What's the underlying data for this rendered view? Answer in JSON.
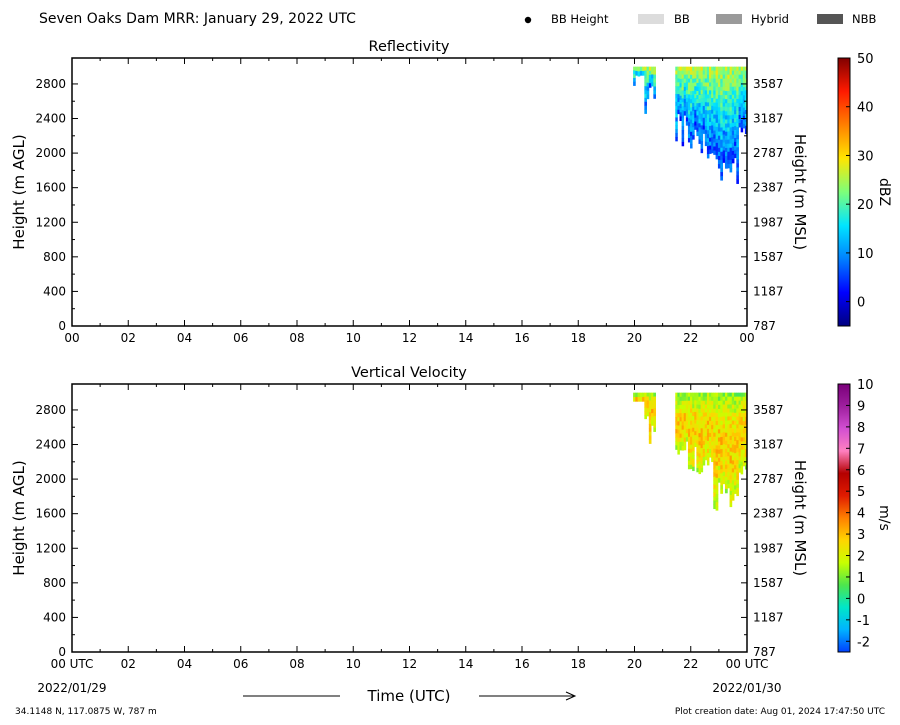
{
  "header": {
    "title": "Seven Oaks Dam MRR:  January 29, 2022 UTC",
    "legend": [
      {
        "label": "BB Height",
        "kind": "dot",
        "color": "#000000"
      },
      {
        "label": "BB",
        "kind": "patch",
        "color": "#dcdcdc"
      },
      {
        "label": "Hybrid",
        "kind": "patch",
        "color": "#9a9a9a"
      },
      {
        "label": "NBB",
        "kind": "patch",
        "color": "#555555"
      }
    ]
  },
  "footer": {
    "location": "34.1148 N, 117.0875 W, 787 m",
    "creation": "Plot creation date: Aug 01, 2024 17:47:50 UTC",
    "date_start": "2022/01/29",
    "date_end": "2022/01/30",
    "time_label": "Time (UTC)"
  },
  "chart_data": [
    {
      "type": "heatmap",
      "title": "Reflectivity",
      "ylabel": "Height (m AGL)",
      "y2label": "Height (m MSL)",
      "xlim": [
        0,
        24
      ],
      "ylim": [
        0,
        3100
      ],
      "yticks": [
        "0",
        "400",
        "800",
        "1200",
        "1600",
        "2000",
        "2400",
        "2800"
      ],
      "y2ticks": [
        "787",
        "1187",
        "1587",
        "1987",
        "2387",
        "2787",
        "3187",
        "3587"
      ],
      "xticks": [
        "00",
        "02",
        "04",
        "06",
        "08",
        "10",
        "12",
        "14",
        "16",
        "18",
        "20",
        "22",
        "00"
      ],
      "colorbar": {
        "label": "dBZ",
        "range": [
          -5,
          50
        ],
        "ticks": [
          "0",
          "10",
          "20",
          "30",
          "40",
          "50"
        ],
        "colormap": [
          "#00007f",
          "#0000ff",
          "#0080ff",
          "#00e5ff",
          "#7dff7a",
          "#ffe600",
          "#ff8000",
          "#ff1a00",
          "#800000"
        ]
      },
      "echo_segments": [
        {
          "x0": 19.95,
          "x1": 20.35,
          "top": 3000,
          "bottom": 2800
        },
        {
          "x0": 20.35,
          "x1": 20.75,
          "top": 3000,
          "bottom": 2450
        },
        {
          "x0": 21.45,
          "x1": 21.9,
          "top": 3000,
          "bottom": 2200
        },
        {
          "x0": 21.9,
          "x1": 22.35,
          "top": 3000,
          "bottom": 2050
        },
        {
          "x0": 22.35,
          "x1": 22.8,
          "top": 3000,
          "bottom": 2000
        },
        {
          "x0": 22.8,
          "x1": 23.3,
          "top": 3000,
          "bottom": 1650
        },
        {
          "x0": 23.3,
          "x1": 23.7,
          "top": 3000,
          "bottom": 1750
        },
        {
          "x0": 23.7,
          "x1": 24.0,
          "top": 3000,
          "bottom": 2000
        }
      ]
    },
    {
      "type": "heatmap",
      "title": "Vertical Velocity",
      "ylabel": "Height (m AGL)",
      "y2label": "Height (m MSL)",
      "xlim": [
        0,
        24
      ],
      "ylim": [
        0,
        3100
      ],
      "yticks": [
        "0",
        "400",
        "800",
        "1200",
        "1600",
        "2000",
        "2400",
        "2800"
      ],
      "y2ticks": [
        "787",
        "1187",
        "1587",
        "1987",
        "2387",
        "2787",
        "3187",
        "3587"
      ],
      "xticks": [
        "00 UTC",
        "02",
        "04",
        "06",
        "08",
        "10",
        "12",
        "14",
        "16",
        "18",
        "20",
        "22",
        "00 UTC"
      ],
      "colorbar": {
        "label": "m/s",
        "range": [
          -2.5,
          10
        ],
        "ticks": [
          "-2",
          "-1",
          "0",
          "1",
          "2",
          "3",
          "4",
          "5",
          "6",
          "7",
          "8",
          "9",
          "10"
        ],
        "colormap": [
          "#0040ff",
          "#00b3ff",
          "#00e6c8",
          "#4de64d",
          "#c8ff00",
          "#ffd500",
          "#ff8000",
          "#e01b00",
          "#b40000",
          "#ff80c0",
          "#d24fd2",
          "#9e1f9e",
          "#7a007a"
        ]
      },
      "echo_segments": [
        {
          "x0": 19.95,
          "x1": 20.35,
          "top": 3000,
          "bottom": 2800
        },
        {
          "x0": 20.35,
          "x1": 20.75,
          "top": 3000,
          "bottom": 2450
        },
        {
          "x0": 21.45,
          "x1": 21.9,
          "top": 3000,
          "bottom": 2200
        },
        {
          "x0": 21.9,
          "x1": 22.35,
          "top": 3000,
          "bottom": 2050
        },
        {
          "x0": 22.35,
          "x1": 22.8,
          "top": 3000,
          "bottom": 2000
        },
        {
          "x0": 22.8,
          "x1": 23.3,
          "top": 3000,
          "bottom": 1650
        },
        {
          "x0": 23.3,
          "x1": 23.7,
          "top": 3000,
          "bottom": 1750
        },
        {
          "x0": 23.7,
          "x1": 24.0,
          "top": 3000,
          "bottom": 2000
        }
      ]
    }
  ]
}
